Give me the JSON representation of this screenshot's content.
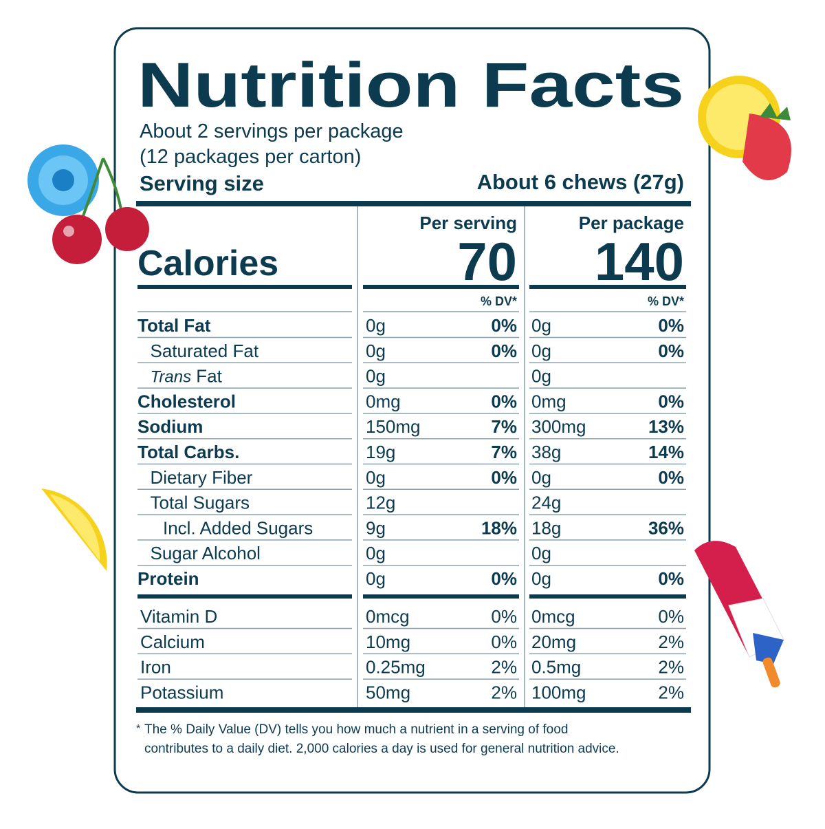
{
  "title": "Nutrition Facts",
  "servings": [
    "About 2 servings per package",
    "(12 packages per carton)"
  ],
  "serving_size": {
    "label": "Serving size",
    "value": "About 6 chews (27g)"
  },
  "columns": [
    "Per serving",
    "Per package"
  ],
  "calories": {
    "label": "Calories",
    "values": [
      70,
      140
    ]
  },
  "dv_header": "% DV*",
  "nutrients": [
    {
      "name": "Total Fat",
      "values": [
        {
          "amount": "0g",
          "dv": "0%"
        },
        {
          "amount": "0g",
          "dv": "0%"
        }
      ],
      "children": [
        {
          "name": "Saturated Fat",
          "values": [
            {
              "amount": "0g",
              "dv": "0%"
            },
            {
              "amount": "0g",
              "dv": "0%"
            }
          ]
        },
        {
          "name_prefix": "Trans",
          "name": "Fat",
          "values": [
            {
              "amount": "0g"
            },
            {
              "amount": "0g"
            }
          ]
        }
      ]
    },
    {
      "name": "Cholesterol",
      "values": [
        {
          "amount": "0mg",
          "dv": "0%"
        },
        {
          "amount": "0mg",
          "dv": "0%"
        }
      ]
    },
    {
      "name": "Sodium",
      "values": [
        {
          "amount": "150mg",
          "dv": "7%"
        },
        {
          "amount": "300mg",
          "dv": "13%"
        }
      ]
    },
    {
      "name": "Total Carbs.",
      "values": [
        {
          "amount": "19g",
          "dv": "7%"
        },
        {
          "amount": "38g",
          "dv": "14%"
        }
      ],
      "children": [
        {
          "name": "Dietary Fiber",
          "values": [
            {
              "amount": "0g",
              "dv": "0%"
            },
            {
              "amount": "0g",
              "dv": "0%"
            }
          ]
        },
        {
          "name": "Total Sugars",
          "values": [
            {
              "amount": "12g"
            },
            {
              "amount": "24g"
            }
          ],
          "children": [
            {
              "name": "Incl. Added Sugars",
              "values": [
                {
                  "amount": "9g",
                  "dv": "18%"
                },
                {
                  "amount": "18g",
                  "dv": "36%"
                }
              ]
            }
          ]
        },
        {
          "name": "Sugar Alcohol",
          "values": [
            {
              "amount": "0g"
            },
            {
              "amount": "0g"
            }
          ]
        }
      ]
    },
    {
      "name": "Protein",
      "values": [
        {
          "amount": "0g",
          "dv": "0%"
        },
        {
          "amount": "0g",
          "dv": "0%"
        }
      ]
    }
  ],
  "vitamins": [
    {
      "name": "Vitamin D",
      "values": [
        {
          "amount": "0mcg",
          "dv": "0%"
        },
        {
          "amount": "0mcg",
          "dv": "0%"
        }
      ]
    },
    {
      "name": "Calcium",
      "values": [
        {
          "amount": "10mg",
          "dv": "0%"
        },
        {
          "amount": "20mg",
          "dv": "2%"
        }
      ]
    },
    {
      "name": "Iron",
      "values": [
        {
          "amount": "0.25mg",
          "dv": "2%"
        },
        {
          "amount": "0.5mg",
          "dv": "2%"
        }
      ]
    },
    {
      "name": "Potassium",
      "values": [
        {
          "amount": "50mg",
          "dv": "2%"
        },
        {
          "amount": "100mg",
          "dv": "2%"
        }
      ]
    }
  ],
  "footnote": {
    "marker": "*",
    "lines": [
      "The % Daily Value (DV) tells you how much a nutrient in a serving of food",
      "contributes to a daily diet. 2,000 calories a day is used for general nutrition advice."
    ]
  }
}
